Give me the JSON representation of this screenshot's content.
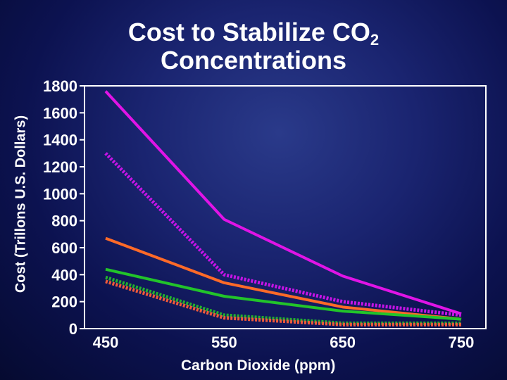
{
  "chart_data": {
    "type": "line",
    "title_main": "Cost to Stabilize CO",
    "title_sub": "2",
    "title_line2": "Concentrations",
    "xlabel": "Carbon Dioxide (ppm)",
    "ylabel": "Cost (Trillons U.S. Dollars)",
    "x": [
      450,
      550,
      650,
      750
    ],
    "x_ticks": [
      "450",
      "550",
      "650",
      "750"
    ],
    "y_ticks": [
      "1800",
      "1600",
      "1400",
      "1200",
      "1000",
      "800",
      "600",
      "400",
      "200",
      "0"
    ],
    "ylim": [
      0,
      1800
    ],
    "grid": false,
    "series": [
      {
        "values": [
          1760,
          810,
          390,
          110
        ],
        "color": "#e014e6",
        "style": "solid"
      },
      {
        "values": [
          1300,
          400,
          200,
          100
        ],
        "color": "#c614e6",
        "style": "dotted"
      },
      {
        "values": [
          670,
          340,
          160,
          70
        ],
        "color": "#ff6a28",
        "style": "solid"
      },
      {
        "values": [
          440,
          240,
          130,
          70
        ],
        "color": "#22c42a",
        "style": "solid"
      },
      {
        "values": [
          380,
          100,
          40,
          40
        ],
        "color": "#22b030",
        "style": "dotted"
      },
      {
        "values": [
          350,
          80,
          30,
          30
        ],
        "color": "#f05a3a",
        "style": "dotted"
      }
    ]
  }
}
